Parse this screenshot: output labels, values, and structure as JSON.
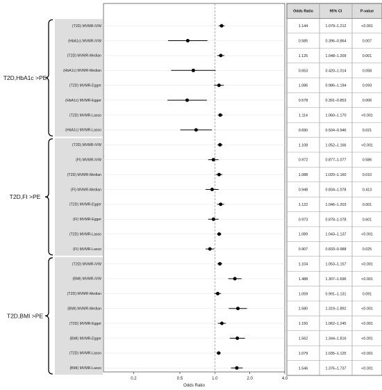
{
  "chart_data": {
    "type": "forest",
    "x_scale": "log",
    "xlabel": "Odds Ratio",
    "xticks": [
      0.2,
      0.5,
      1.0,
      2.0,
      4.0
    ],
    "xtick_labels": [
      "0.2",
      "0.5",
      "1.0",
      "2.0",
      "4.0"
    ],
    "xlim": [
      0.11,
      4.0
    ],
    "reference_line": 1.0,
    "columns": [
      "Odds Ratio",
      "95% CI",
      "P-value"
    ],
    "groups": [
      {
        "label": "T2D,HbA1c >PE",
        "rows": [
          {
            "label": "(T2D) MVMR-IVW",
            "or": 1.144,
            "lo": 1.079,
            "hi": 1.212,
            "or_text": "1.144",
            "ci": "1.079–1.212",
            "p": "<0.001"
          },
          {
            "label": "(HbA1c) MVMR-IVW",
            "or": 0.585,
            "lo": 0.396,
            "hi": 0.864,
            "or_text": "0.585",
            "ci": "0.396–0.864",
            "p": "0.007"
          },
          {
            "label": "(T2D) MVMR-Median",
            "or": 1.125,
            "lo": 1.048,
            "hi": 1.209,
            "or_text": "1.125",
            "ci": "1.048–1.209",
            "p": "0.001"
          },
          {
            "label": "(HbA1c) MVMR-Median",
            "or": 0.653,
            "lo": 0.42,
            "hi": 1.014,
            "or_text": "0.653",
            "ci": "0.420–1.014",
            "p": "0.058"
          },
          {
            "label": "(T2D) MVMR-Egger",
            "or": 1.086,
            "lo": 0.986,
            "hi": 1.194,
            "or_text": "1.086",
            "ci": "0.986–1.194",
            "p": "0.093"
          },
          {
            "label": "(HbA1c) MVMR-Egger",
            "or": 0.578,
            "lo": 0.391,
            "hi": 0.853,
            "or_text": "0.578",
            "ci": "0.391–0.853",
            "p": "0.006"
          },
          {
            "label": "(T2D) MVMR-Lasso",
            "or": 1.114,
            "lo": 1.06,
            "hi": 1.17,
            "or_text": "1.114",
            "ci": "1.060–1.170",
            "p": "<0.001"
          },
          {
            "label": "(HbA1c) MVMR-Lasso",
            "or": 0.69,
            "lo": 0.504,
            "hi": 0.946,
            "or_text": "0.690",
            "ci": "0.504–0.946",
            "p": "0.021"
          }
        ]
      },
      {
        "label": "T2D,FI >PE",
        "rows": [
          {
            "label": "(T2D) MVMR-IVW",
            "or": 1.108,
            "lo": 1.052,
            "hi": 1.166,
            "or_text": "1.108",
            "ci": "1.052–1.166",
            "p": "<0.001"
          },
          {
            "label": "(FI) MVMR-IVW",
            "or": 0.972,
            "lo": 0.877,
            "hi": 1.077,
            "or_text": "0.972",
            "ci": "0.877–1.077",
            "p": "0.586"
          },
          {
            "label": "(T2D) MVMR-Median",
            "or": 1.088,
            "lo": 1.02,
            "hi": 1.16,
            "or_text": "1.088",
            "ci": "1.020–1.160",
            "p": "0.010"
          },
          {
            "label": "(FI) MVMR-Median",
            "or": 0.948,
            "lo": 0.834,
            "hi": 1.078,
            "or_text": "0.948",
            "ci": "0.834–1.078",
            "p": "0.413"
          },
          {
            "label": "(T2D) MVMR-Egger",
            "or": 1.122,
            "lo": 1.046,
            "hi": 1.203,
            "or_text": "1.122",
            "ci": "1.046–1.203",
            "p": "0.001"
          },
          {
            "label": "(FI) MVMR-Egger",
            "or": 0.973,
            "lo": 0.878,
            "hi": 1.078,
            "or_text": "0.973",
            "ci": "0.878–1.078",
            "p": "0.601"
          },
          {
            "label": "(T2D) MVMR-Lasso",
            "or": 1.089,
            "lo": 1.043,
            "hi": 1.137,
            "or_text": "1.089",
            "ci": "1.043–1.137",
            "p": "<0.001"
          },
          {
            "label": "(FI) MVMR-Lasso",
            "or": 0.907,
            "lo": 0.833,
            "hi": 0.988,
            "or_text": "0.907",
            "ci": "0.833–0.988",
            "p": "0.025"
          }
        ]
      },
      {
        "label": "T2D,BMI >PE",
        "rows": [
          {
            "label": "(T2D) MVMR-IVW",
            "or": 1.104,
            "lo": 1.053,
            "hi": 1.157,
            "or_text": "1.104",
            "ci": "1.053–1.157",
            "p": "<0.001"
          },
          {
            "label": "(BMI) MVMR-IVW",
            "or": 1.488,
            "lo": 1.307,
            "hi": 1.696,
            "or_text": "1.488",
            "ci": "1.307–1.696",
            "p": "<0.001"
          },
          {
            "label": "(T2D) MVMR-Median",
            "or": 1.059,
            "lo": 0.991,
            "hi": 1.131,
            "or_text": "1.059",
            "ci": "0.991–1.131",
            "p": "0.091"
          },
          {
            "label": "(BMI) MVMR-Median",
            "or": 1.58,
            "lo": 1.319,
            "hi": 1.892,
            "or_text": "1.580",
            "ci": "1.319–1.892",
            "p": "<0.001"
          },
          {
            "label": "(T2D) MVMR-Egger",
            "or": 1.15,
            "lo": 1.062,
            "hi": 1.245,
            "or_text": "1.150",
            "ci": "1.062–1.245",
            "p": "<0.001"
          },
          {
            "label": "(BMI) MVMR-Egger",
            "or": 1.562,
            "lo": 1.344,
            "hi": 1.816,
            "or_text": "1.562",
            "ci": "1.344–1.816",
            "p": "<0.001"
          },
          {
            "label": "(T2D) MVMR-Lasso",
            "or": 1.079,
            "lo": 1.035,
            "hi": 1.125,
            "or_text": "1.079",
            "ci": "1.035–1.125",
            "p": "<0.001"
          },
          {
            "label": "(BMI) MVMR-Lasso",
            "or": 1.546,
            "lo": 1.376,
            "hi": 1.737,
            "or_text": "1.546",
            "ci": "1.376–1.737",
            "p": "<0.001"
          }
        ]
      }
    ]
  }
}
